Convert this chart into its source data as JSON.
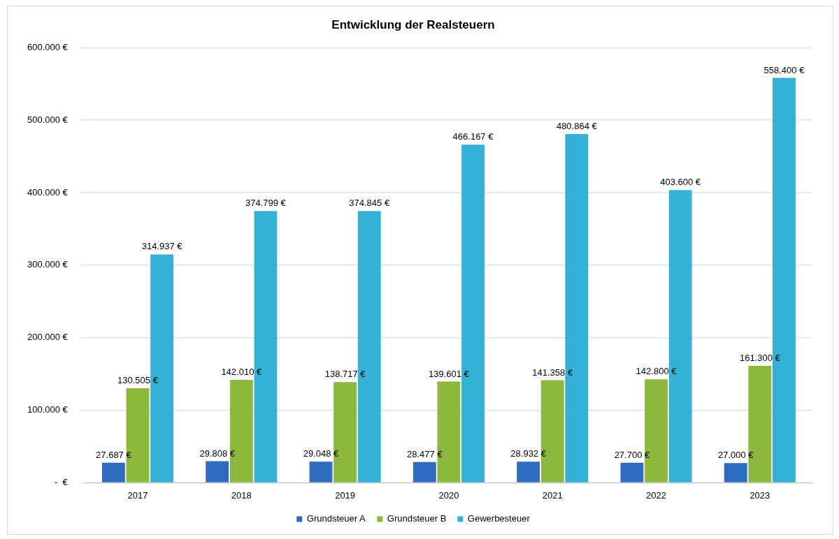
{
  "chart_data": {
    "type": "bar",
    "title": "Entwicklung der Realsteuern",
    "categories": [
      "2017",
      "2018",
      "2019",
      "2020",
      "2021",
      "2022",
      "2023"
    ],
    "series": [
      {
        "name": "Grundsteuer A",
        "color": "#2f6cbf",
        "values": [
          27687,
          29808,
          29048,
          28477,
          28932,
          27700,
          27000
        ],
        "value_labels": [
          "27.687 €",
          "29.808 €",
          "29.048 €",
          "28.477 €",
          "28.932 €",
          "27.700 €",
          "27.000 €"
        ]
      },
      {
        "name": "Grundsteuer B",
        "color": "#8cb83c",
        "values": [
          130505,
          142010,
          138717,
          139601,
          141358,
          142800,
          161300
        ],
        "value_labels": [
          "130.505 €",
          "142.010 €",
          "138.717 €",
          "139.601 €",
          "141.358 €",
          "142.800 €",
          "161.300 €"
        ]
      },
      {
        "name": "Gewerbesteuer",
        "color": "#33b1d6",
        "values": [
          314937,
          374799,
          374845,
          466167,
          480864,
          403600,
          558400
        ],
        "value_labels": [
          "314.937 €",
          "374.799 €",
          "374.845 €",
          "466.167 €",
          "480.864 €",
          "403.600 €",
          "558.400 €"
        ]
      }
    ],
    "ylim": [
      0,
      600000
    ],
    "yticks": [
      {
        "value": 0,
        "label": "-  €"
      },
      {
        "value": 100000,
        "label": "100.000 €"
      },
      {
        "value": 200000,
        "label": "200.000 €"
      },
      {
        "value": 300000,
        "label": "300.000 €"
      },
      {
        "value": 400000,
        "label": "400.000 €"
      },
      {
        "value": 500000,
        "label": "500.000 €"
      },
      {
        "value": 600000,
        "label": "600.000 €"
      }
    ],
    "grid": "y",
    "legend": "bottom"
  }
}
